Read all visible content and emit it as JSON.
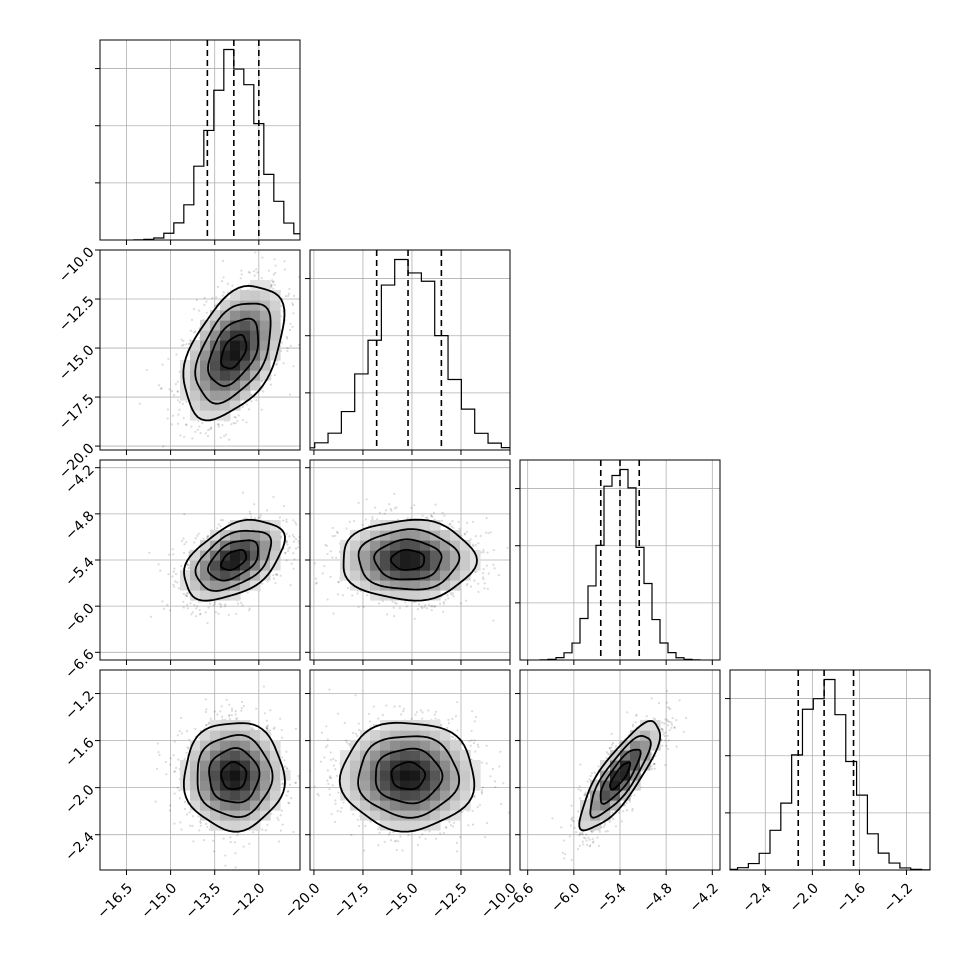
{
  "chart_data": {
    "type": "corner",
    "title": "",
    "grid": true,
    "parameters": [
      {
        "index": 0,
        "range": [
          -17.4,
          -10.6
        ],
        "ticks": [
          -16.5,
          -15.0,
          -13.5,
          -12.0
        ],
        "tick_labels": [
          "−16.5",
          "−15.0",
          "−13.5",
          "−12.0"
        ],
        "quantiles": [
          -13.75,
          -12.85,
          -12.0
        ],
        "mean": -12.85,
        "std": 0.85
      },
      {
        "index": 1,
        "range": [
          -20.2,
          -10.0
        ],
        "ticks": [
          -20.0,
          -17.5,
          -15.0,
          -12.5,
          -10.0
        ],
        "tick_labels": [
          "−20.0",
          "−17.5",
          "−15.0",
          "−12.5",
          "−10.0"
        ],
        "quantiles": [
          -16.8,
          -15.2,
          -13.5
        ],
        "mean": -15.2,
        "std": 1.7
      },
      {
        "index": 2,
        "range": [
          -6.7,
          -4.1
        ],
        "ticks": [
          -6.6,
          -6.0,
          -5.4,
          -4.8,
          -4.2
        ],
        "tick_labels": [
          "−6.6",
          "−6.0",
          "−5.4",
          "−4.8",
          "−4.2"
        ],
        "quantiles": [
          -5.65,
          -5.4,
          -5.15
        ],
        "mean": -5.4,
        "std": 0.26
      },
      {
        "index": 3,
        "range": [
          -2.7,
          -1.0
        ],
        "ticks": [
          -2.4,
          -2.0,
          -1.6,
          -1.2
        ],
        "tick_labels": [
          "−2.4",
          "−2.0",
          "−1.6",
          "−1.2"
        ],
        "quantiles": [
          -2.12,
          -1.9,
          -1.65
        ],
        "mean": -1.9,
        "std": 0.23
      }
    ],
    "correlations": [
      {
        "pair": [
          0,
          1
        ],
        "rho": 0.45
      },
      {
        "pair": [
          0,
          2
        ],
        "rho": 0.45
      },
      {
        "pair": [
          1,
          2
        ],
        "rho": 0.0
      },
      {
        "pair": [
          0,
          3
        ],
        "rho": 0.0
      },
      {
        "pair": [
          1,
          3
        ],
        "rho": 0.0
      },
      {
        "pair": [
          2,
          3
        ],
        "rho": 0.82
      }
    ],
    "histogram_bins": 20,
    "contour_levels_sigma": [
      0.5,
      1.0,
      1.5,
      2.0
    ],
    "colors": {
      "line": "#000000",
      "grid": "#b0b0b0",
      "points": "#000000"
    }
  }
}
